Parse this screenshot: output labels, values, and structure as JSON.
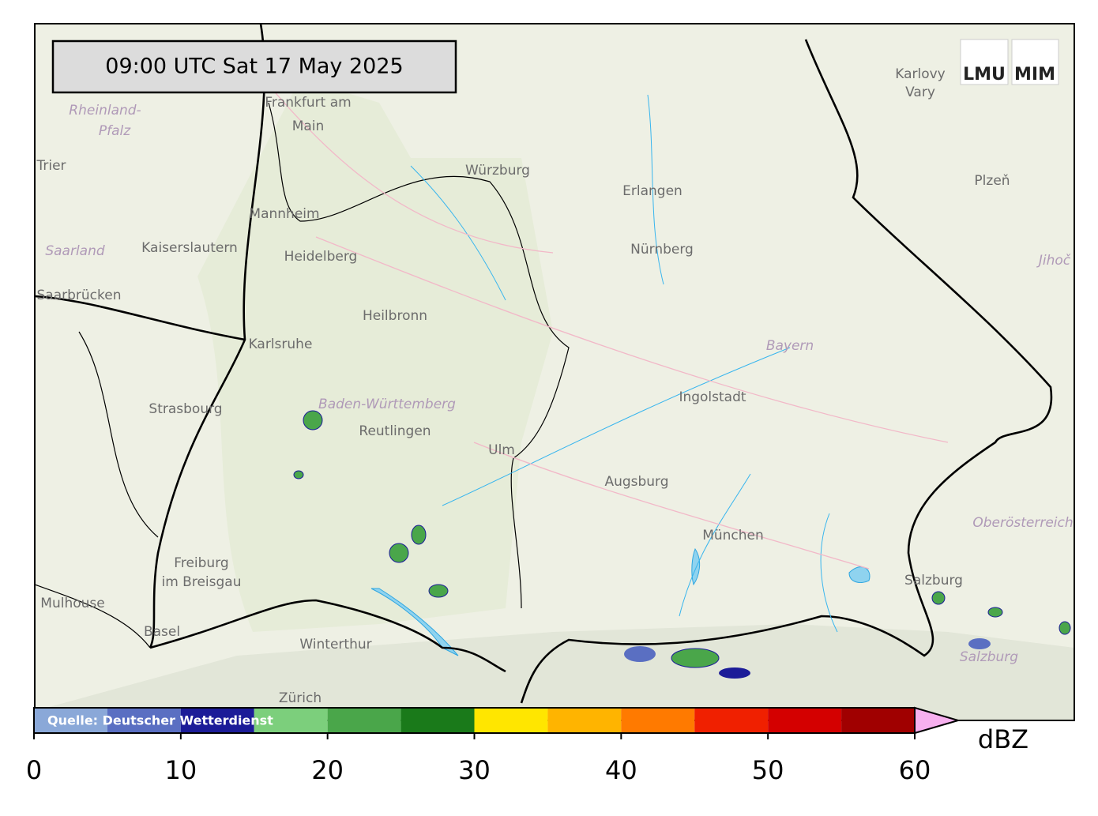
{
  "timestamp": "09:00 UTC  Sat 17 May 2025",
  "source": "Quelle: Deutscher Wetterdienst",
  "logos": [
    "LMU",
    "MIM"
  ],
  "colorbar": {
    "unit": "dBZ",
    "bounds": [
      0,
      5,
      10,
      15,
      20,
      25,
      30,
      35,
      40,
      45,
      50,
      55,
      60
    ],
    "colors": [
      "#8aa8d8",
      "#5a6fc2",
      "#1c1c98",
      "#7ccf7c",
      "#4aa64a",
      "#1a7a1a",
      "#ffe600",
      "#ffb400",
      "#ff7a00",
      "#f02000",
      "#d40000",
      "#a00000"
    ],
    "extend_color": "#f7b0ef",
    "ticks": [
      0,
      10,
      20,
      30,
      40,
      50,
      60
    ]
  },
  "places": [
    {
      "label": "Frankfurt am"
    },
    {
      "label": "Main"
    },
    {
      "label": "Würzburg"
    },
    {
      "label": "Erlangen"
    },
    {
      "label": "Nürnberg"
    },
    {
      "label": "Mannheim"
    },
    {
      "label": "Kaiserslautern"
    },
    {
      "label": "Heidelberg"
    },
    {
      "label": "Saarland"
    },
    {
      "label": "Rheinland-"
    },
    {
      "label": "Pfalz"
    },
    {
      "label": "Trier"
    },
    {
      "label": "Saarbrücken"
    },
    {
      "label": "Karlsruhe"
    },
    {
      "label": "Heilbronn"
    },
    {
      "label": "Baden-Württemberg"
    },
    {
      "label": "Reutlingen"
    },
    {
      "label": "Strasbourg"
    },
    {
      "label": "Ulm"
    },
    {
      "label": "Ingolstadt"
    },
    {
      "label": "Bayern"
    },
    {
      "label": "Augsburg"
    },
    {
      "label": "München"
    },
    {
      "label": "Freiburg"
    },
    {
      "label": "im Breisgau"
    },
    {
      "label": "Mulhouse"
    },
    {
      "label": "Basel"
    },
    {
      "label": "Winterthur"
    },
    {
      "label": "Salzburg"
    },
    {
      "label": "Salzburg"
    },
    {
      "label": "Oberösterreich"
    },
    {
      "label": "Karlovy"
    },
    {
      "label": "Vary"
    },
    {
      "label": "Plzeň"
    },
    {
      "label": "Jihoč"
    },
    {
      "label": "Zürich"
    }
  ]
}
